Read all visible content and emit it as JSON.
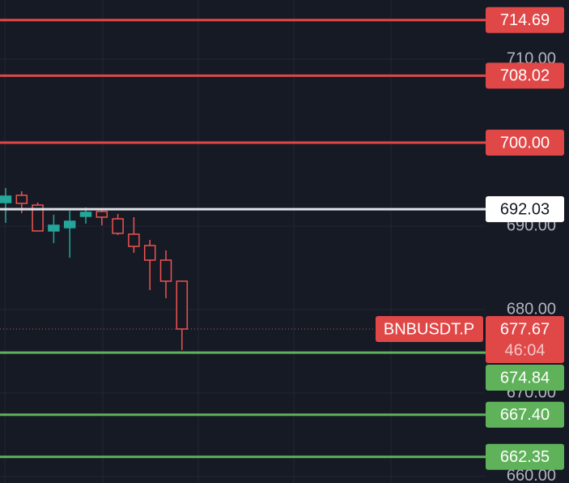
{
  "chart_data": {
    "type": "candlestick",
    "ylim": [
      659.22,
      717.09
    ],
    "yticks": [
      {
        "value": 660,
        "label": "660.00"
      },
      {
        "value": 670,
        "label": "670.00"
      },
      {
        "value": 680,
        "label": "680.00"
      },
      {
        "value": 690,
        "label": "690.00"
      },
      {
        "value": 710,
        "label": "710.00"
      }
    ],
    "grid": true,
    "up_color": "#26a69a",
    "down_color": "#ef5350",
    "open": [
      692.82,
      693.69,
      692.52,
      689.42,
      689.81,
      691.17,
      691.75,
      690.87,
      689.03,
      687.67,
      685.92,
      683.4
    ],
    "high": [
      694.56,
      694.17,
      692.82,
      691.36,
      691.84,
      692.23,
      692.14,
      691.46,
      691.07,
      688.35,
      687.09,
      683.4
    ],
    "low": [
      690.39,
      691.55,
      689.42,
      687.96,
      686.21,
      690.29,
      690.1,
      688.93,
      686.8,
      682.33,
      681.36,
      675.15
    ],
    "close": [
      693.59,
      692.72,
      689.42,
      690.1,
      690.58,
      691.65,
      691.07,
      689.13,
      687.57,
      685.92,
      683.4,
      677.67
    ],
    "levels": {
      "values": [
        714.69,
        708.02,
        700,
        692.03,
        674.84,
        667.4,
        662.35
      ],
      "value_labels": [
        "714.69",
        "708.02",
        "700.00",
        "692.03",
        "674.84",
        "667.40",
        "662.35"
      ],
      "colors": [
        "#e04848",
        "#e04848",
        "#e04848",
        "#e0e3eb",
        "#5fb25a",
        "#5fb25a",
        "#5fb25a"
      ]
    },
    "last_price": {
      "symbol": "BNBUSDT.P",
      "value": 677.67,
      "countdown": "46:04",
      "color": "#e04848"
    }
  }
}
